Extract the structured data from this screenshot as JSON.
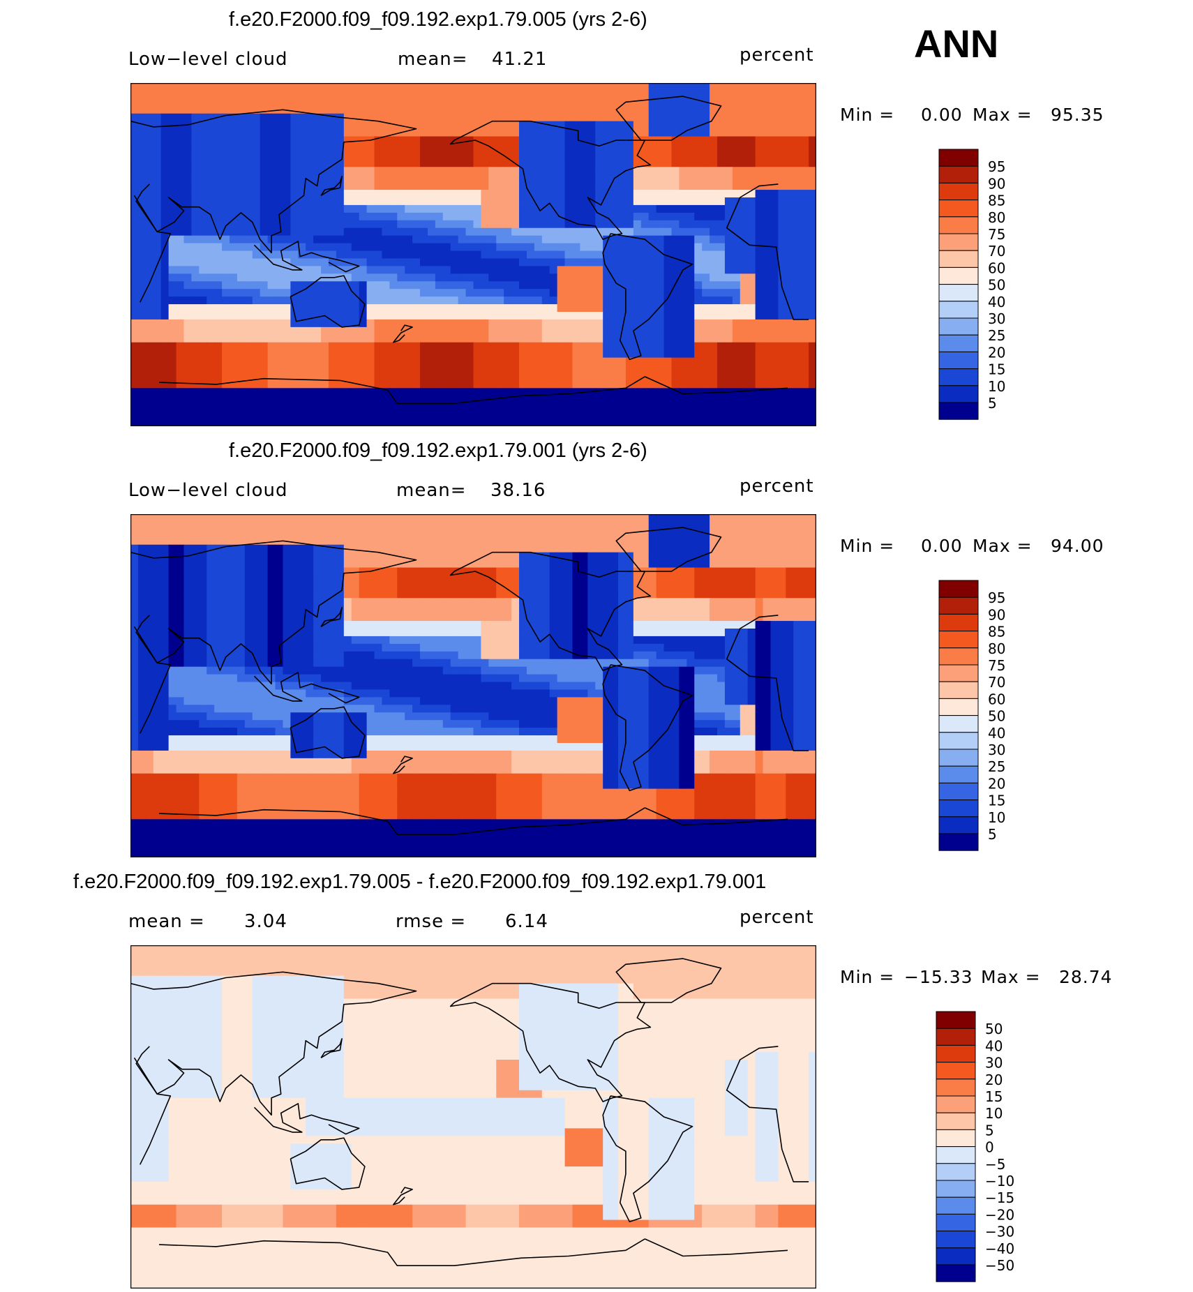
{
  "season_label": "ANN",
  "panels": [
    {
      "title": "f.e20.F2000.f09_f09.192.exp1.79.005 (yrs 2-6)",
      "left_label": "Low−level cloud",
      "mid_label": "mean=",
      "mid_value": "41.21",
      "units": "percent",
      "min_label": "Min =",
      "min_value": "0.00",
      "max_label": "Max =",
      "max_value": "95.35"
    },
    {
      "title": "f.e20.F2000.f09_f09.192.exp1.79.001 (yrs 2-6)",
      "left_label": "Low−level cloud",
      "mid_label": "mean=",
      "mid_value": "38.16",
      "units": "percent",
      "min_label": "Min =",
      "min_value": "0.00",
      "max_label": "Max =",
      "max_value": "94.00"
    },
    {
      "title": "f.e20.F2000.f09_f09.192.exp1.79.005 - f.e20.F2000.f09_f09.192.exp1.79.001",
      "left_label": "mean =",
      "left_value": "3.04",
      "mid_label": "rmse =",
      "mid_value": "6.14",
      "units": "percent",
      "min_label": "Min =",
      "min_value": "−15.33",
      "max_label": "Max =",
      "max_value": "28.74"
    }
  ],
  "chart_data": [
    {
      "type": "heatmap",
      "title": "f.e20.F2000.f09_f09.192.exp1.79.005 (yrs 2-6)",
      "variable": "Low-level cloud",
      "units": "percent",
      "mean": 41.21,
      "min": 0.0,
      "max": 95.35,
      "projection": "cylindrical equidistant, Pacific-centred",
      "colorbar_ticks": [
        "95",
        "90",
        "85",
        "80",
        "75",
        "70",
        "60",
        "50",
        "40",
        "30",
        "25",
        "20",
        "15",
        "10",
        "5"
      ],
      "colorbar_colors": [
        "#800000",
        "#b3200a",
        "#dd3a0d",
        "#f45a20",
        "#fa7c47",
        "#fca07a",
        "#fdc6a8",
        "#fde8d9",
        "#dbe8fa",
        "#b3cef7",
        "#88aef2",
        "#5b8cec",
        "#3565e3",
        "#1a47d6",
        "#0a2cc0",
        "#00008e"
      ]
    },
    {
      "type": "heatmap",
      "title": "f.e20.F2000.f09_f09.192.exp1.79.001 (yrs 2-6)",
      "variable": "Low-level cloud",
      "units": "percent",
      "mean": 38.16,
      "min": 0.0,
      "max": 94.0,
      "projection": "cylindrical equidistant, Pacific-centred",
      "colorbar_ticks": [
        "95",
        "90",
        "85",
        "80",
        "75",
        "70",
        "60",
        "50",
        "40",
        "30",
        "25",
        "20",
        "15",
        "10",
        "5"
      ],
      "colorbar_colors": [
        "#800000",
        "#b3200a",
        "#dd3a0d",
        "#f45a20",
        "#fa7c47",
        "#fca07a",
        "#fdc6a8",
        "#fde8d9",
        "#dbe8fa",
        "#b3cef7",
        "#88aef2",
        "#5b8cec",
        "#3565e3",
        "#1a47d6",
        "#0a2cc0",
        "#00008e"
      ]
    },
    {
      "type": "heatmap",
      "title": "f.e20.F2000.f09_f09.192.exp1.79.005 - f.e20.F2000.f09_f09.192.exp1.79.001",
      "units": "percent",
      "mean": 3.04,
      "rmse": 6.14,
      "min": -15.33,
      "max": 28.74,
      "projection": "cylindrical equidistant, Pacific-centred",
      "colorbar_ticks": [
        "50",
        "40",
        "30",
        "20",
        "15",
        "10",
        "5",
        "0",
        "−5",
        "−10",
        "−15",
        "−20",
        "−30",
        "−40",
        "−50"
      ],
      "colorbar_colors": [
        "#800000",
        "#b3200a",
        "#dd3a0d",
        "#f45a20",
        "#fa7c47",
        "#fca07a",
        "#fdc6a8",
        "#fde8d9",
        "#dbe8fa",
        "#b3cef7",
        "#88aef2",
        "#5b8cec",
        "#3565e3",
        "#1a47d6",
        "#0a2cc0",
        "#00008e"
      ]
    }
  ]
}
